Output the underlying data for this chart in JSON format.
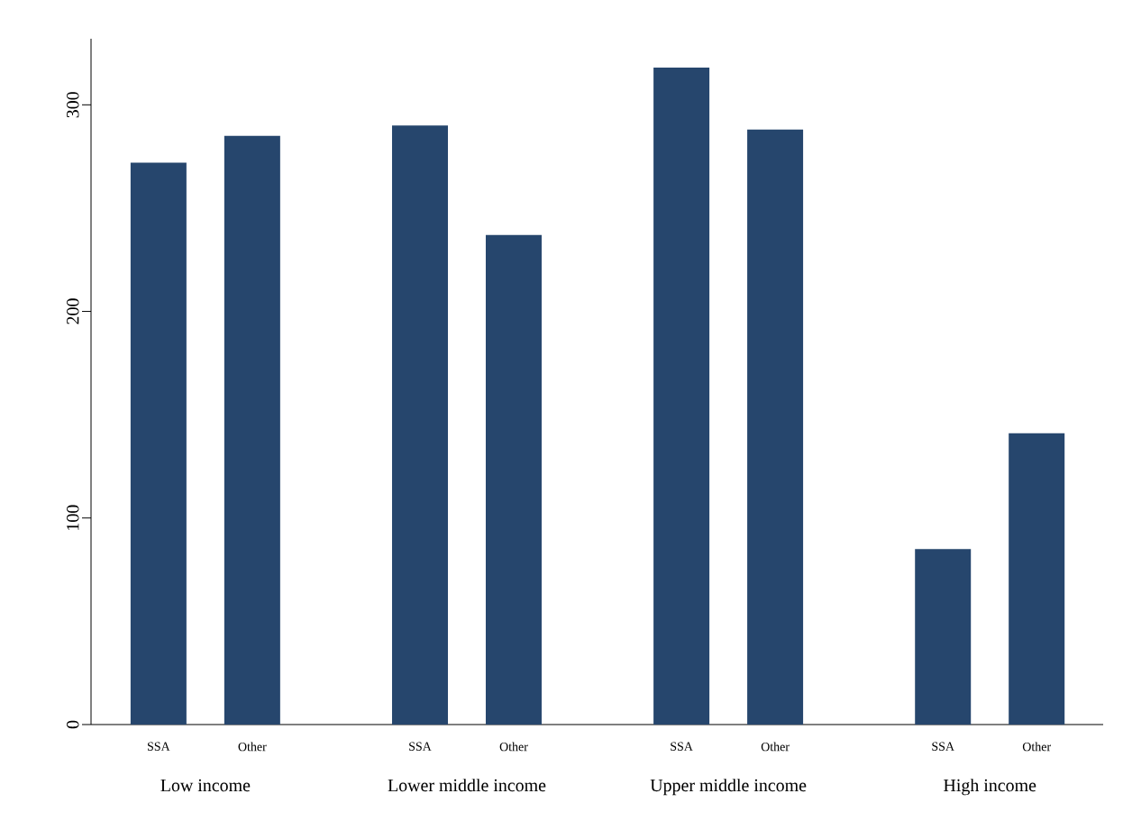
{
  "chart_data": {
    "type": "bar",
    "categories": [
      "SSA",
      "Other",
      "SSA",
      "Other",
      "SSA",
      "Other",
      "SSA",
      "Other"
    ],
    "values": [
      272,
      285,
      290,
      237,
      318,
      288,
      85,
      141
    ],
    "color": "#26466d",
    "ylim": [
      0,
      332
    ],
    "yticks": [
      0,
      100,
      200,
      300
    ],
    "annotations": [
      "Low income",
      "Lower middle income",
      "Upper middle income",
      "High income"
    ]
  }
}
